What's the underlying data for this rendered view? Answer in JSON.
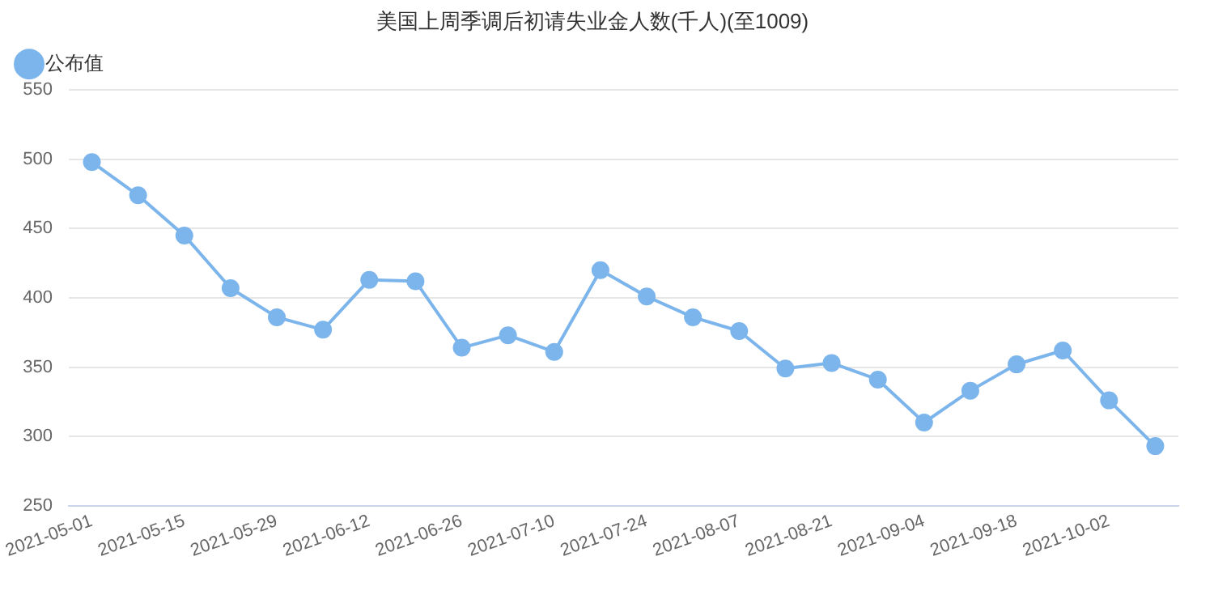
{
  "chart_data": {
    "type": "line",
    "title": "美国上周季调后初请失业金人数(千人)(至1009)",
    "categories": [
      "2021-05-01",
      null,
      "2021-05-15",
      null,
      "2021-05-29",
      null,
      "2021-06-12",
      null,
      "2021-06-26",
      null,
      "2021-07-10",
      null,
      "2021-07-24",
      null,
      "2021-08-07",
      null,
      "2021-08-21",
      null,
      "2021-09-04",
      null,
      "2021-09-18",
      null,
      "2021-10-02",
      null
    ],
    "series": [
      {
        "name": "公布值",
        "color": "#7cb5ec",
        "values": [
          498,
          474,
          445,
          407,
          386,
          377,
          413,
          412,
          364,
          373,
          361,
          420,
          401,
          386,
          376,
          349,
          353,
          341,
          310,
          333,
          352,
          362,
          326,
          293
        ]
      }
    ],
    "ylim": [
      250,
      550
    ],
    "yticks": [
      250,
      300,
      350,
      400,
      450,
      500,
      550
    ],
    "grid": "y",
    "legend": "top left",
    "marker": "circle"
  }
}
